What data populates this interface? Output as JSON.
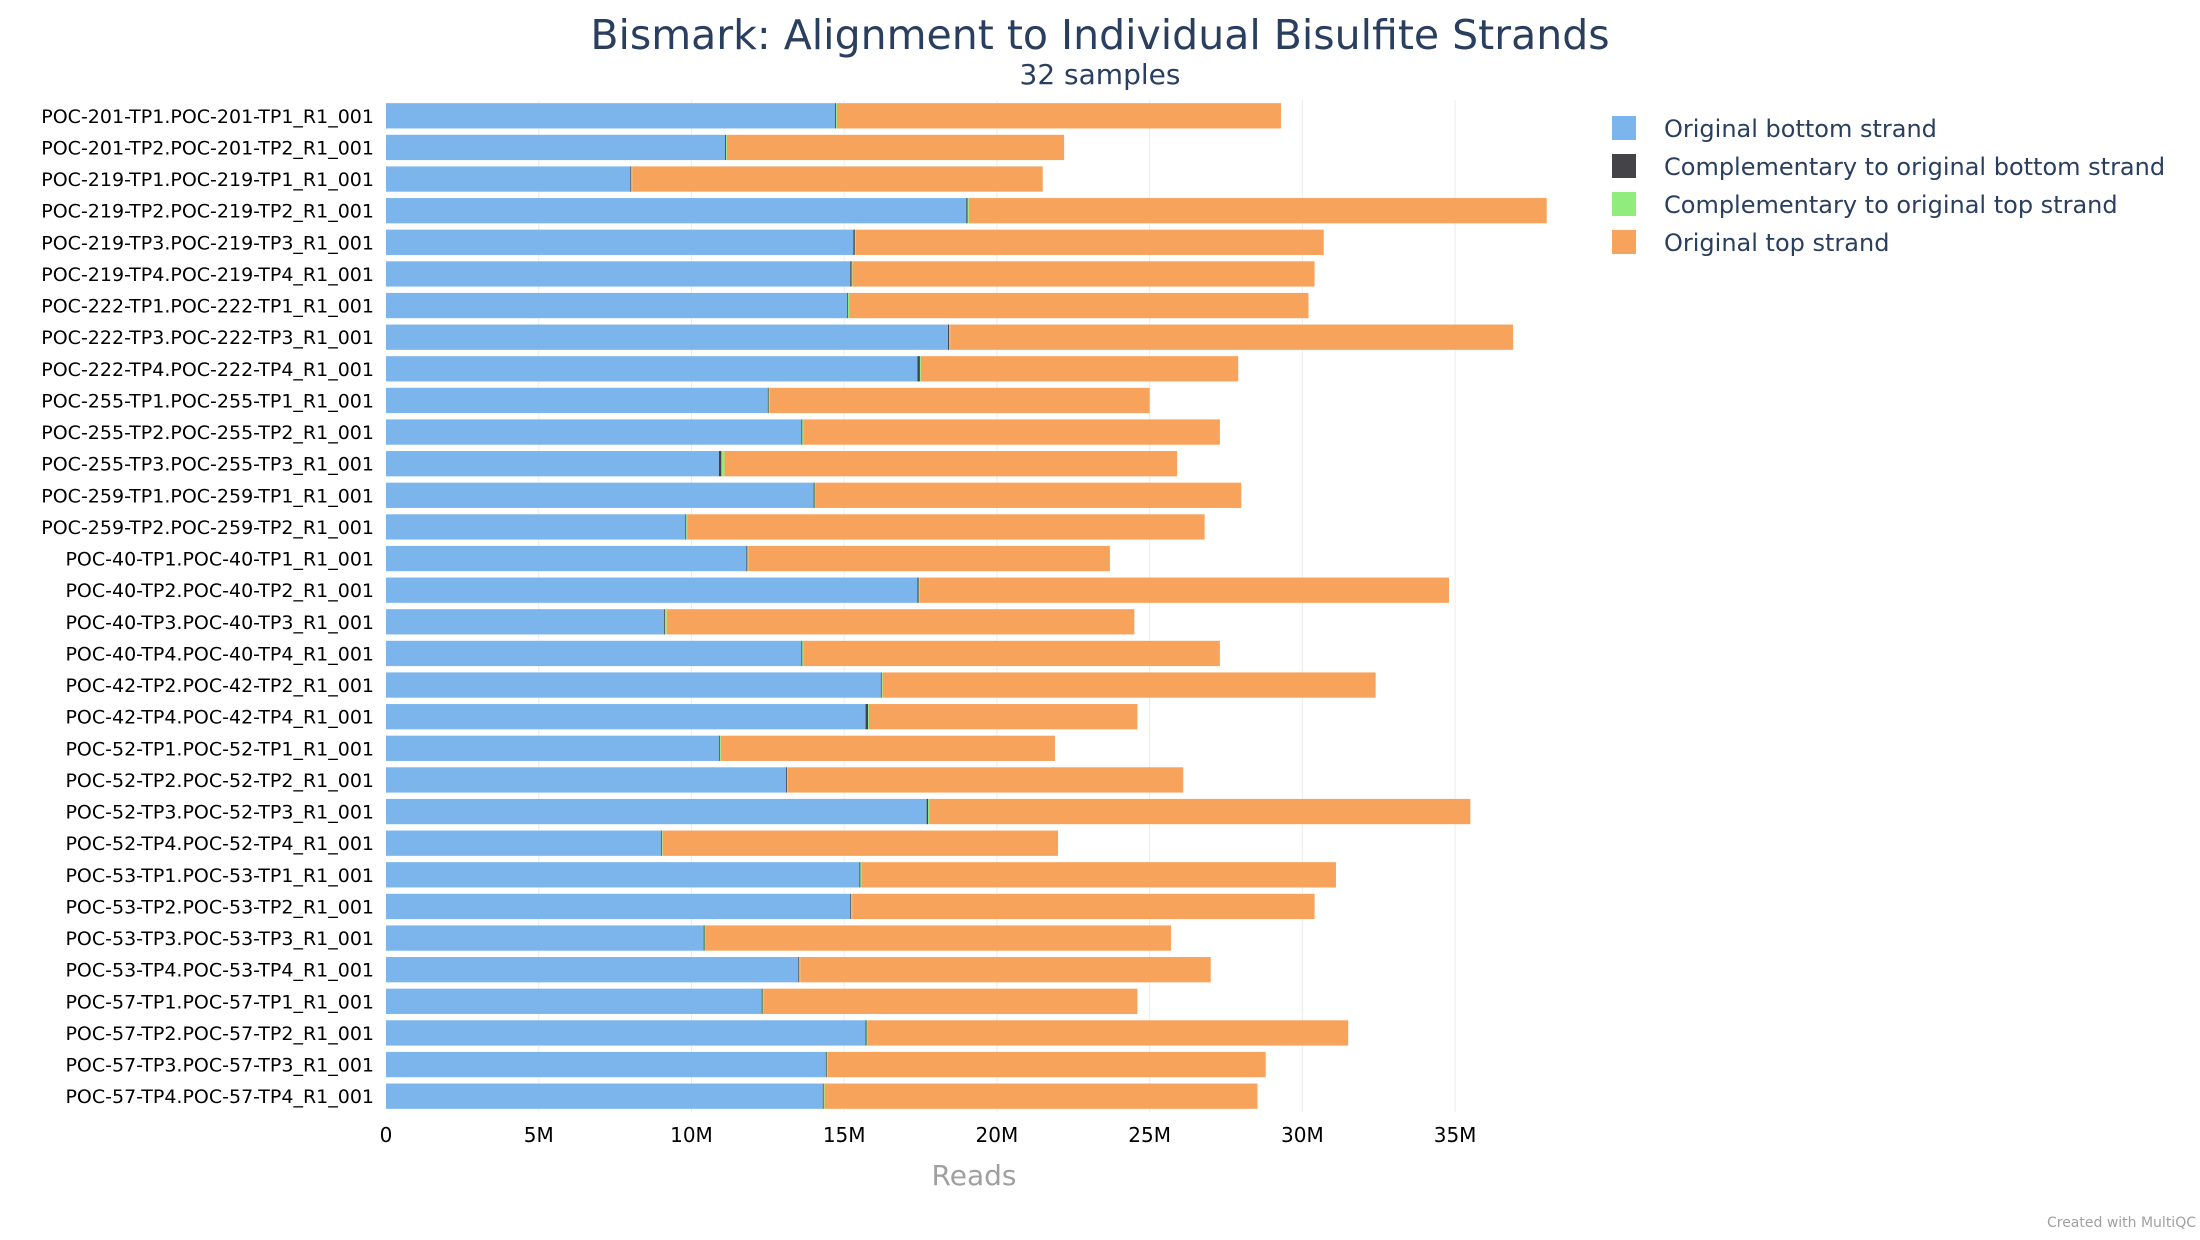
{
  "chart_data": {
    "type": "bar",
    "orientation": "horizontal",
    "stacked": true,
    "title": "Bismark: Alignment to Individual Bisulfite Strands",
    "subtitle": "32 samples",
    "xlabel": "Reads",
    "ylabel": "",
    "xlim": [
      0,
      38500000
    ],
    "xticks": [
      0,
      5000000,
      10000000,
      15000000,
      20000000,
      25000000,
      30000000,
      35000000
    ],
    "xtick_labels": [
      "0",
      "5M",
      "10M",
      "15M",
      "20M",
      "25M",
      "30M",
      "35M"
    ],
    "grid": "vertical",
    "legend_position": "top-right",
    "credit": "Created with MultiQC",
    "categories": [
      "POC-201-TP1.POC-201-TP1_R1_001",
      "POC-201-TP2.POC-201-TP2_R1_001",
      "POC-219-TP1.POC-219-TP1_R1_001",
      "POC-219-TP2.POC-219-TP2_R1_001",
      "POC-219-TP3.POC-219-TP3_R1_001",
      "POC-219-TP4.POC-219-TP4_R1_001",
      "POC-222-TP1.POC-222-TP1_R1_001",
      "POC-222-TP3.POC-222-TP3_R1_001",
      "POC-222-TP4.POC-222-TP4_R1_001",
      "POC-255-TP1.POC-255-TP1_R1_001",
      "POC-255-TP2.POC-255-TP2_R1_001",
      "POC-255-TP3.POC-255-TP3_R1_001",
      "POC-259-TP1.POC-259-TP1_R1_001",
      "POC-259-TP2.POC-259-TP2_R1_001",
      "POC-40-TP1.POC-40-TP1_R1_001",
      "POC-40-TP2.POC-40-TP2_R1_001",
      "POC-40-TP3.POC-40-TP3_R1_001",
      "POC-40-TP4.POC-40-TP4_R1_001",
      "POC-42-TP2.POC-42-TP2_R1_001",
      "POC-42-TP4.POC-42-TP4_R1_001",
      "POC-52-TP1.POC-52-TP1_R1_001",
      "POC-52-TP2.POC-52-TP2_R1_001",
      "POC-52-TP3.POC-52-TP3_R1_001",
      "POC-52-TP4.POC-52-TP4_R1_001",
      "POC-53-TP1.POC-53-TP1_R1_001",
      "POC-53-TP2.POC-53-TP2_R1_001",
      "POC-53-TP3.POC-53-TP3_R1_001",
      "POC-53-TP4.POC-53-TP4_R1_001",
      "POC-57-TP1.POC-57-TP1_R1_001",
      "POC-57-TP2.POC-57-TP2_R1_001",
      "POC-57-TP3.POC-57-TP3_R1_001",
      "POC-57-TP4.POC-57-TP4_R1_001"
    ],
    "series": [
      {
        "name": "Original bottom strand",
        "color": "#7cb5ec",
        "values": [
          14700000,
          11100000,
          8000000,
          19000000,
          15300000,
          15200000,
          15100000,
          18400000,
          17400000,
          12500000,
          13600000,
          10900000,
          14000000,
          9800000,
          11800000,
          17400000,
          9100000,
          13600000,
          16200000,
          15700000,
          10900000,
          13100000,
          17700000,
          9000000,
          15500000,
          15200000,
          10400000,
          13500000,
          12300000,
          15700000,
          14400000,
          14300000
        ]
      },
      {
        "name": "Complementary to original bottom strand",
        "color": "#434348",
        "values": [
          30000,
          30000,
          30000,
          40000,
          50000,
          40000,
          30000,
          40000,
          80000,
          30000,
          30000,
          80000,
          30000,
          30000,
          30000,
          40000,
          30000,
          30000,
          30000,
          80000,
          30000,
          30000,
          50000,
          30000,
          30000,
          30000,
          30000,
          30000,
          30000,
          30000,
          30000,
          30000
        ]
      },
      {
        "name": "Complementary to original top strand",
        "color": "#90ed7d",
        "values": [
          30000,
          30000,
          30000,
          40000,
          30000,
          30000,
          30000,
          30000,
          30000,
          30000,
          30000,
          100000,
          30000,
          30000,
          30000,
          30000,
          60000,
          30000,
          30000,
          30000,
          30000,
          30000,
          30000,
          30000,
          30000,
          30000,
          30000,
          30000,
          30000,
          30000,
          30000,
          30000
        ]
      },
      {
        "name": "Original top strand",
        "color": "#f7a35c",
        "values": [
          14540000,
          11040000,
          13440000,
          18920000,
          15320000,
          15130000,
          15040000,
          18430000,
          10390000,
          12440000,
          13640000,
          14820000,
          13940000,
          16940000,
          11840000,
          17330000,
          15310000,
          13640000,
          16140000,
          8790000,
          10940000,
          12940000,
          17720000,
          12940000,
          15540000,
          15140000,
          15240000,
          13440000,
          12240000,
          15740000,
          14340000,
          14170000
        ]
      }
    ]
  }
}
